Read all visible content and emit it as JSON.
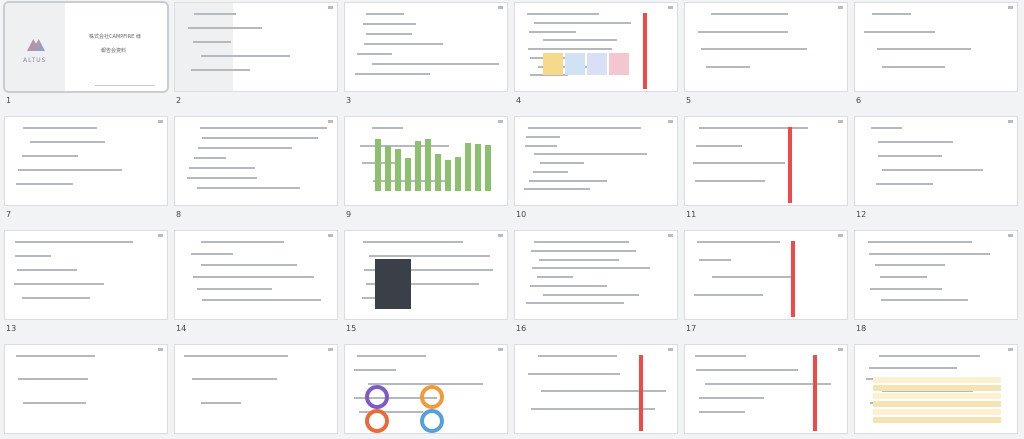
{
  "slides": [
    {
      "label": "1",
      "title": "株式会社CAMPFIRE 様",
      "subtitle": "報告会資料",
      "logo": "ALTUS"
    },
    {
      "label": "2"
    },
    {
      "label": "3"
    },
    {
      "label": "4"
    },
    {
      "label": "5"
    },
    {
      "label": "6"
    },
    {
      "label": "7"
    },
    {
      "label": "8"
    },
    {
      "label": "9"
    },
    {
      "label": "10"
    },
    {
      "label": "11"
    },
    {
      "label": "12"
    },
    {
      "label": "13"
    },
    {
      "label": "14"
    },
    {
      "label": "15"
    },
    {
      "label": "16"
    },
    {
      "label": "17"
    },
    {
      "label": "18"
    },
    {},
    {},
    {},
    {},
    {},
    {}
  ]
}
